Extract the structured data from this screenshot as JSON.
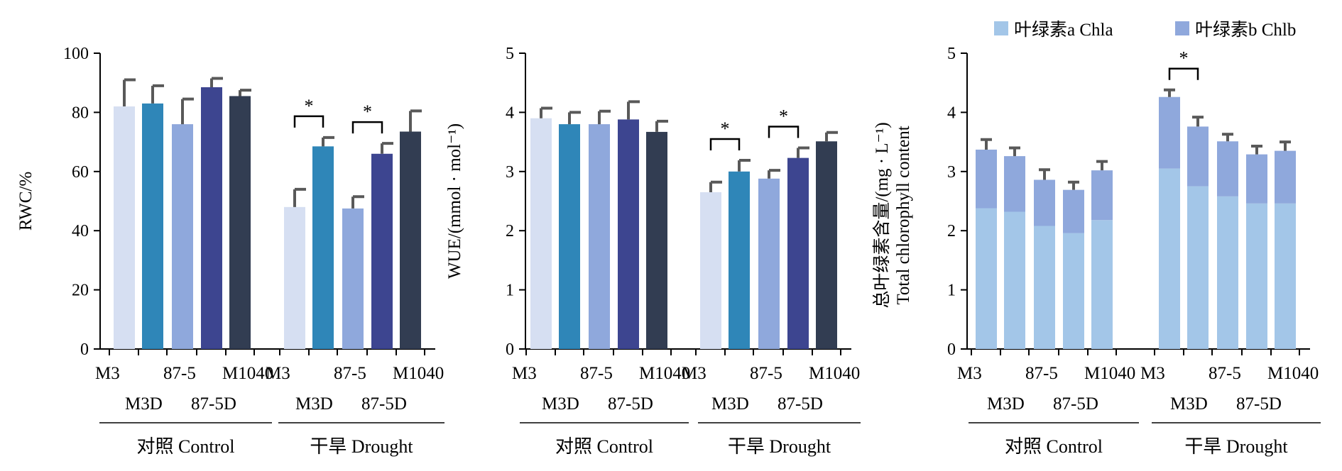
{
  "chart_data": [
    {
      "type": "bar",
      "ylabel": "RWC/%",
      "ylim": [
        0,
        100
      ],
      "ticks": [
        0,
        20,
        40,
        60,
        80,
        100
      ],
      "colors": [
        "#d6dff2",
        "#2f86b8",
        "#8fa8dc",
        "#3d4590",
        "#323d52"
      ],
      "groups": [
        {
          "label": "对照 Control",
          "categories": [
            "M3",
            "M3D",
            "87-5",
            "87-5D",
            "M1040"
          ],
          "values": [
            82,
            83,
            76,
            88.5,
            85.5
          ],
          "errors": [
            9,
            6,
            8.5,
            3,
            2
          ]
        },
        {
          "label": "干旱 Drought",
          "categories": [
            "M3",
            "M3D",
            "87-5",
            "87-5D",
            "M1040"
          ],
          "values": [
            48,
            68.5,
            47.5,
            66,
            73.5
          ],
          "errors": [
            6,
            3,
            4,
            3.5,
            7
          ]
        }
      ],
      "significance": [
        {
          "group": 1,
          "between": [
            0,
            1
          ],
          "label": "*"
        },
        {
          "group": 1,
          "between": [
            2,
            3
          ],
          "label": "*"
        }
      ]
    },
    {
      "type": "bar",
      "ylabel": "WUE/(mmol · mol⁻¹)",
      "ylim": [
        0,
        5
      ],
      "ticks": [
        0,
        1,
        2,
        3,
        4,
        5
      ],
      "colors": [
        "#d6dff2",
        "#2f86b8",
        "#8fa8dc",
        "#3d4590",
        "#323d52"
      ],
      "groups": [
        {
          "label": "对照 Control",
          "categories": [
            "M3",
            "M3D",
            "87-5",
            "87-5D",
            "M1040"
          ],
          "values": [
            3.9,
            3.8,
            3.8,
            3.88,
            3.67
          ],
          "errors": [
            0.17,
            0.2,
            0.22,
            0.3,
            0.18
          ]
        },
        {
          "label": "干旱 Drought",
          "categories": [
            "M3",
            "M3D",
            "87-5",
            "87-5D",
            "M1040"
          ],
          "values": [
            2.65,
            3.0,
            2.88,
            3.23,
            3.51
          ],
          "errors": [
            0.17,
            0.19,
            0.14,
            0.17,
            0.15
          ]
        }
      ],
      "significance": [
        {
          "group": 1,
          "between": [
            0,
            1
          ],
          "label": "*"
        },
        {
          "group": 1,
          "between": [
            2,
            3
          ],
          "label": "*"
        }
      ]
    },
    {
      "type": "bar",
      "stacked": true,
      "ylabel_line1": "总叶绿素含量/(mg · L⁻¹)",
      "ylabel_line2": "Total chlorophyll content",
      "ylim": [
        0,
        5
      ],
      "ticks": [
        0,
        1,
        2,
        3,
        4,
        5
      ],
      "legend_position": "top",
      "series": [
        {
          "name": "叶绿素a Chla",
          "color": "#a3c6e8"
        },
        {
          "name": "叶绿素b Chlb",
          "color": "#8fa8dc"
        }
      ],
      "groups": [
        {
          "label": "对照 Control",
          "categories": [
            "M3",
            "M3D",
            "87-5",
            "87-5D",
            "M1040"
          ],
          "chla": [
            2.38,
            2.32,
            2.08,
            1.96,
            2.18
          ],
          "totals": [
            3.37,
            3.26,
            2.86,
            2.69,
            3.02
          ],
          "errors": [
            0.17,
            0.14,
            0.17,
            0.13,
            0.15
          ]
        },
        {
          "label": "干旱 Drought",
          "categories": [
            "M3",
            "M3D",
            "87-5",
            "87-5D",
            "M1040"
          ],
          "chla": [
            3.05,
            2.75,
            2.58,
            2.46,
            2.46
          ],
          "totals": [
            4.26,
            3.76,
            3.51,
            3.29,
            3.35
          ],
          "errors": [
            0.12,
            0.16,
            0.12,
            0.14,
            0.15
          ]
        }
      ],
      "significance": [
        {
          "group": 1,
          "between": [
            0,
            1
          ],
          "label": "*"
        }
      ]
    }
  ]
}
